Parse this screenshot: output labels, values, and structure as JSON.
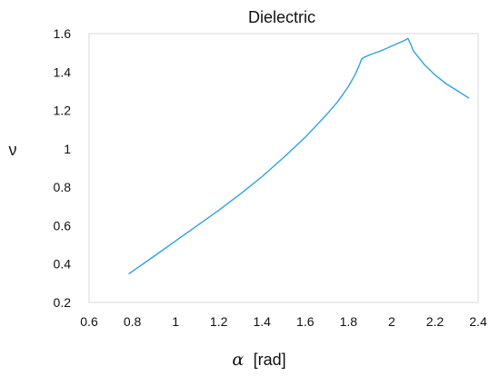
{
  "chart_data": {
    "type": "line",
    "title": "Dielectric",
    "xlabel_symbol": "α",
    "xlabel_unit": "[rad]",
    "ylabel": "ν",
    "xlim": [
      0.6,
      2.4
    ],
    "ylim": [
      0.2,
      1.6
    ],
    "xticks": [
      "0.6",
      "0.8",
      "1",
      "1.2",
      "1.4",
      "1.6",
      "1.8",
      "2",
      "2.2",
      "2.4"
    ],
    "yticks": [
      "0.2",
      "0.4",
      "0.6",
      "0.8",
      "1",
      "1.2",
      "1.4",
      "1.6"
    ],
    "grid": false,
    "series": [
      {
        "color": "#2ea3d8",
        "x": [
          0.785,
          0.9,
          1.0,
          1.1,
          1.2,
          1.3,
          1.4,
          1.5,
          1.6,
          1.7,
          1.75,
          1.8,
          1.83,
          1.85,
          1.86,
          1.87,
          1.9,
          1.95,
          2.0,
          2.04,
          2.06,
          2.075,
          2.09,
          2.1,
          2.15,
          2.2,
          2.25,
          2.3,
          2.356
        ],
        "y": [
          0.35,
          0.44,
          0.52,
          0.6,
          0.68,
          0.765,
          0.855,
          0.955,
          1.06,
          1.18,
          1.245,
          1.325,
          1.385,
          1.435,
          1.465,
          1.475,
          1.49,
          1.51,
          1.535,
          1.555,
          1.565,
          1.575,
          1.54,
          1.51,
          1.44,
          1.385,
          1.34,
          1.305,
          1.265
        ]
      }
    ]
  }
}
